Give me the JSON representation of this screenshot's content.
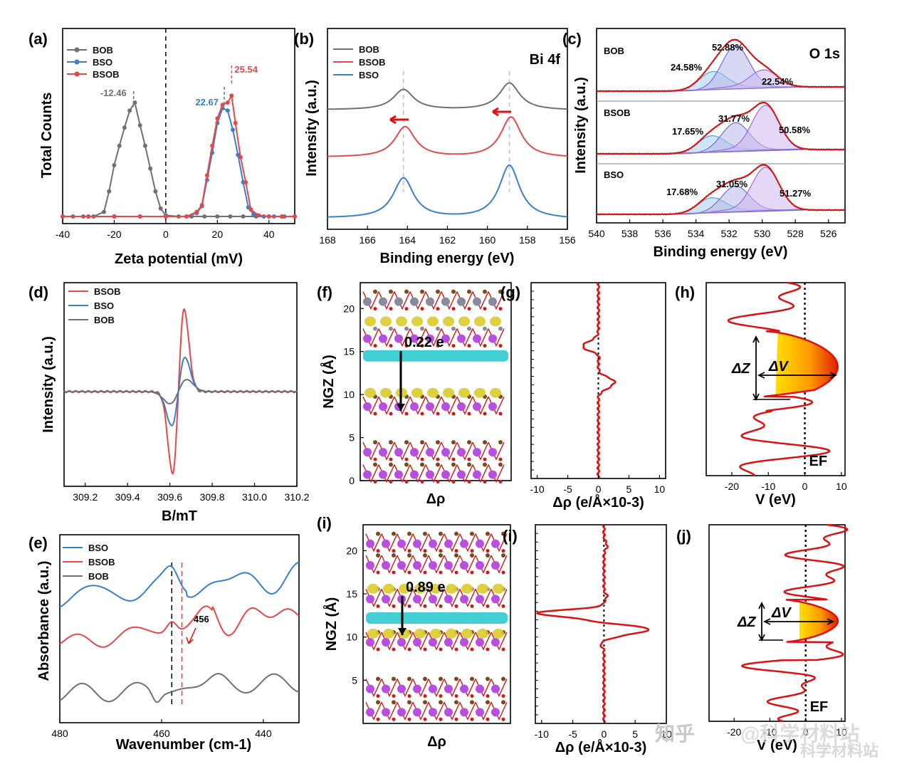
{
  "colors": {
    "bob": "#707070",
    "bso": "#3a7fc8",
    "bsob": "#e8474a",
    "curve": "#dd1111",
    "cyan": "#2ec9cf",
    "yellow": "#d9cc2a",
    "purple": "#b94ee0",
    "brown": "#7a4a1a",
    "red_atom": "#d01818"
  },
  "panel_labels": [
    "(a)",
    "(b)",
    "(c)",
    "(d)",
    "(e)",
    "(f)",
    "(g)",
    "(h)",
    "(i)",
    "(j)",
    "(k)"
  ],
  "watermark": {
    "text1": "知乎",
    "text2": "@科学材料站",
    "text3": "科学材料站"
  },
  "chart_data": [
    {
      "id": "a",
      "type": "line",
      "xlabel": "Zeta potential (mV)",
      "ylabel": "Total Counts",
      "xlim": [
        -40,
        50
      ],
      "xticks": [
        -40,
        -20,
        0,
        20,
        40
      ],
      "ylim": [
        0,
        1
      ],
      "legend": [
        "BOB",
        "BSO",
        "BSOB"
      ],
      "legend_position": "top-left",
      "series": [
        {
          "name": "BOB",
          "x": [
            -40,
            -36,
            -32,
            -28,
            -24,
            -22,
            -20,
            -18,
            -16,
            -14,
            -12,
            -10,
            -8,
            -6,
            -4,
            -2,
            0,
            5,
            10,
            15,
            20,
            25,
            30,
            35,
            40,
            45,
            50
          ],
          "y": [
            0,
            0,
            0,
            0,
            0.04,
            0.22,
            0.45,
            0.62,
            0.78,
            0.93,
            1.0,
            0.8,
            0.62,
            0.42,
            0.22,
            0.07,
            0.01,
            0,
            0,
            0,
            0,
            0,
            0,
            0,
            0,
            0,
            0
          ]
        },
        {
          "name": "BSO",
          "x": [
            -40,
            -30,
            -20,
            -10,
            0,
            8,
            12,
            14,
            16,
            18,
            20,
            22,
            24,
            26,
            28,
            30,
            32,
            34,
            38,
            42,
            46,
            50
          ],
          "y": [
            0,
            0,
            0,
            0,
            0,
            0,
            0.03,
            0.09,
            0.32,
            0.56,
            0.82,
            0.95,
            0.93,
            0.76,
            0.54,
            0.3,
            0.08,
            0.02,
            0,
            0,
            0,
            0
          ]
        },
        {
          "name": "BSOB",
          "x": [
            -40,
            -30,
            -20,
            -10,
            0,
            8,
            12,
            14,
            16,
            18,
            20,
            22,
            24,
            25.5,
            27,
            29,
            31,
            33,
            36,
            40,
            45,
            50
          ],
          "y": [
            0,
            0,
            0,
            0,
            0,
            0,
            0.04,
            0.1,
            0.36,
            0.62,
            0.86,
            0.98,
            1.0,
            1.06,
            0.82,
            0.52,
            0.3,
            0.06,
            0.01,
            0,
            0,
            0
          ]
        }
      ],
      "annotations": [
        "-12.46",
        "22.67",
        "25.54"
      ]
    },
    {
      "id": "b",
      "type": "line",
      "title": "Bi 4f",
      "xlabel": "Binding energy (eV)",
      "ylabel": "Intensity (a.u.)",
      "xlim": [
        168,
        156
      ],
      "xticks": [
        168,
        166,
        164,
        162,
        160,
        158,
        156
      ],
      "legend": [
        "BOB",
        "BSOB",
        "BSO"
      ],
      "legend_position": "top-left",
      "series": [
        {
          "name": "BOB",
          "peaks": [
            164.2,
            158.9
          ]
        },
        {
          "name": "BSOB",
          "peaks": [
            164.3,
            159.0
          ]
        },
        {
          "name": "BSO",
          "peaks": [
            164.2,
            158.9
          ]
        }
      ]
    },
    {
      "id": "c",
      "type": "line",
      "title": "O 1s",
      "xlabel": "Binding energy (eV)",
      "ylabel": "Intensity (a.u.)",
      "xlim": [
        540,
        525
      ],
      "xticks": [
        540,
        538,
        536,
        534,
        532,
        530,
        528,
        526
      ],
      "series": [
        {
          "name": "BOB",
          "components": [
            {
              "center": 533.0,
              "share": "24.58%"
            },
            {
              "center": 531.6,
              "share": "52.88%"
            },
            {
              "center": 529.9,
              "share": "22.54%"
            }
          ]
        },
        {
          "name": "BSOB",
          "components": [
            {
              "center": 533.1,
              "share": "17.65%"
            },
            {
              "center": 531.6,
              "share": "31.77%"
            },
            {
              "center": 529.8,
              "share": "50.58%"
            }
          ]
        },
        {
          "name": "BSO",
          "components": [
            {
              "center": 533.1,
              "share": "17.68%"
            },
            {
              "center": 531.6,
              "share": "31.05%"
            },
            {
              "center": 529.8,
              "share": "51.27%"
            }
          ]
        }
      ]
    },
    {
      "id": "d",
      "type": "line",
      "xlabel": "B/mT",
      "ylabel": "Intensity (a.u.)",
      "xlim": [
        309.1,
        310.2
      ],
      "xticks": [
        309.2,
        309.4,
        309.6,
        309.8,
        310.0,
        310.2
      ],
      "legend": [
        "BSOB",
        "BSO",
        "BOB"
      ],
      "legend_position": "top-left",
      "series": [
        {
          "name": "BSOB",
          "center": 309.64,
          "amplitude": 1.0
        },
        {
          "name": "BSO",
          "center": 309.64,
          "amplitude": 0.42
        },
        {
          "name": "BOB",
          "center": 309.64,
          "amplitude": 0.14
        }
      ]
    },
    {
      "id": "e",
      "type": "line",
      "xlabel": "Wavenumber (cm-1)",
      "ylabel": "Absorbance (a.u.)",
      "xlim": [
        480,
        433
      ],
      "xticks": [
        480,
        460,
        440
      ],
      "legend": [
        "BSO",
        "BSOB",
        "BOB"
      ],
      "legend_position": "top-left",
      "markers": [
        458,
        456
      ],
      "annotations": [
        "456"
      ]
    },
    {
      "id": "g",
      "type": "line",
      "xlabel": "Δρ (e/Å×10-3)",
      "ylabel": "",
      "xlim": [
        -11,
        11
      ],
      "xticks": [
        -10,
        -5,
        0,
        5,
        10
      ],
      "ylim": [
        0,
        23
      ],
      "series": [
        {
          "name": "",
          "features": [
            {
              "z": 15.5,
              "value": -2.5
            },
            {
              "z": 11.2,
              "value": 2.2
            }
          ]
        }
      ]
    },
    {
      "id": "h",
      "type": "line",
      "xlabel": "V (eV)",
      "ylabel": "",
      "xlim": [
        -27,
        11
      ],
      "xticks": [
        -20,
        -10,
        0,
        10
      ],
      "annotations": [
        "ΔZ",
        "ΔV",
        "EF"
      ]
    },
    {
      "id": "j",
      "type": "line",
      "xlabel": "Δρ (e/Å×10-3)",
      "ylabel": "",
      "xlim": [
        -11,
        10
      ],
      "xticks": [
        -10,
        -5,
        0,
        5,
        10
      ],
      "ylim": [
        0,
        23
      ],
      "series": [
        {
          "name": "",
          "features": [
            {
              "z": 12.8,
              "value": -10.0
            },
            {
              "z": 11.0,
              "value": 7.0
            }
          ]
        }
      ]
    },
    {
      "id": "k",
      "type": "line",
      "xlabel": "V (eV)",
      "ylabel": "",
      "xlim": [
        -27,
        11
      ],
      "xticks": [
        -20,
        -10,
        0,
        10
      ],
      "annotations": [
        "ΔZ",
        "ΔV",
        "EF"
      ]
    },
    {
      "id": "f",
      "type": "structure",
      "xlabel": "Δρ",
      "ylabel": "NGZ (Å)",
      "yticks": [
        0,
        5,
        10,
        15,
        20
      ],
      "annotations": [
        "0.22 e"
      ]
    },
    {
      "id": "i",
      "type": "structure",
      "xlabel": "Δρ",
      "ylabel": "NGZ (Å)",
      "yticks": [
        5,
        10,
        15,
        20
      ],
      "annotations": [
        "0.89 e"
      ]
    }
  ]
}
